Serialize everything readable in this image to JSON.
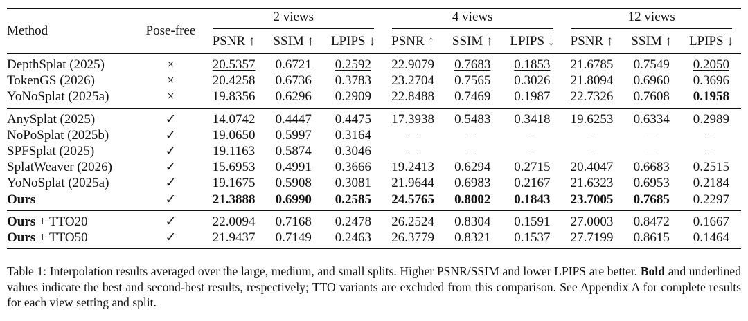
{
  "table": {
    "col_method": "Method",
    "col_pose": "Pose-free",
    "groups": [
      "2 views",
      "4 views",
      "12 views"
    ],
    "metrics": [
      "PSNR ↑",
      "SSIM ↑",
      "LPIPS ↓"
    ],
    "sections": [
      [
        {
          "method": "DepthSplat (2025)",
          "pose": "×",
          "v": [
            "20.5357",
            "0.6721",
            "0.2592",
            "22.9079",
            "0.7683",
            "0.1853",
            "21.6785",
            "0.7549",
            "0.2050"
          ],
          "u": [
            0,
            2,
            4,
            5,
            8
          ],
          "b": []
        },
        {
          "method": "TokenGS (2026)",
          "pose": "×",
          "v": [
            "20.4258",
            "0.6736",
            "0.3783",
            "23.2704",
            "0.7565",
            "0.3026",
            "21.8094",
            "0.6960",
            "0.3696"
          ],
          "u": [
            1,
            3
          ],
          "b": []
        },
        {
          "method": "YoNoSplat (2025a)",
          "pose": "×",
          "v": [
            "19.8356",
            "0.6296",
            "0.2909",
            "22.8488",
            "0.7469",
            "0.1987",
            "22.7326",
            "0.7608",
            "0.1958"
          ],
          "u": [
            6,
            7
          ],
          "b": [
            8
          ]
        }
      ],
      [
        {
          "method": "AnySplat (2025)",
          "pose": "✓",
          "v": [
            "14.0742",
            "0.4447",
            "0.4475",
            "17.3938",
            "0.5483",
            "0.3418",
            "19.6253",
            "0.6334",
            "0.2989"
          ],
          "u": [],
          "b": []
        },
        {
          "method": "NoPoSplat (2025b)",
          "pose": "✓",
          "v": [
            "19.0650",
            "0.5997",
            "0.3164",
            "–",
            "–",
            "–",
            "–",
            "–",
            "–"
          ],
          "u": [],
          "b": []
        },
        {
          "method": "SPFSplat (2025)",
          "pose": "✓",
          "v": [
            "19.1163",
            "0.5874",
            "0.3046",
            "–",
            "–",
            "–",
            "–",
            "–",
            "–"
          ],
          "u": [],
          "b": []
        },
        {
          "method": "SplatWeaver (2026)",
          "pose": "✓",
          "v": [
            "15.6953",
            "0.4991",
            "0.3666",
            "19.2413",
            "0.6294",
            "0.2715",
            "20.4047",
            "0.6683",
            "0.2515"
          ],
          "u": [],
          "b": []
        },
        {
          "method": "YoNoSplat (2025a)",
          "pose": "✓",
          "v": [
            "19.1675",
            "0.5908",
            "0.3081",
            "21.9644",
            "0.6983",
            "0.2167",
            "21.6323",
            "0.6953",
            "0.2184"
          ],
          "u": [],
          "b": []
        },
        {
          "method": "Ours",
          "method_bold": true,
          "pose": "✓",
          "v": [
            "21.3888",
            "0.6990",
            "0.2585",
            "24.5765",
            "0.8002",
            "0.1843",
            "23.7005",
            "0.7685",
            "0.2297"
          ],
          "u": [],
          "b": [
            0,
            1,
            2,
            3,
            4,
            5,
            6,
            7
          ]
        }
      ],
      [
        {
          "method": "Ours",
          "method_suffix": " + TTO20",
          "method_bold": true,
          "pose": "✓",
          "v": [
            "22.0094",
            "0.7168",
            "0.2478",
            "26.2524",
            "0.8304",
            "0.1591",
            "27.0003",
            "0.8472",
            "0.1667"
          ],
          "u": [],
          "b": []
        },
        {
          "method": "Ours",
          "method_suffix": " + TTO50",
          "method_bold": true,
          "pose": "✓",
          "v": [
            "21.9437",
            "0.7149",
            "0.2463",
            "26.3779",
            "0.8321",
            "0.1537",
            "27.7199",
            "0.8615",
            "0.1464"
          ],
          "u": [],
          "b": []
        }
      ]
    ]
  },
  "caption": {
    "t1": "Table 1: Interpolation results averaged over the large, medium, and small splits. Higher PSNR/SSIM and lower LPIPS are better. ",
    "bold": "Bold",
    "t2": " and ",
    "underlined": "underlined",
    "t3": " values indicate the best and second-best results, respectively; TTO variants are excluded from this comparison. See Appendix A for complete results for each view setting and split."
  }
}
